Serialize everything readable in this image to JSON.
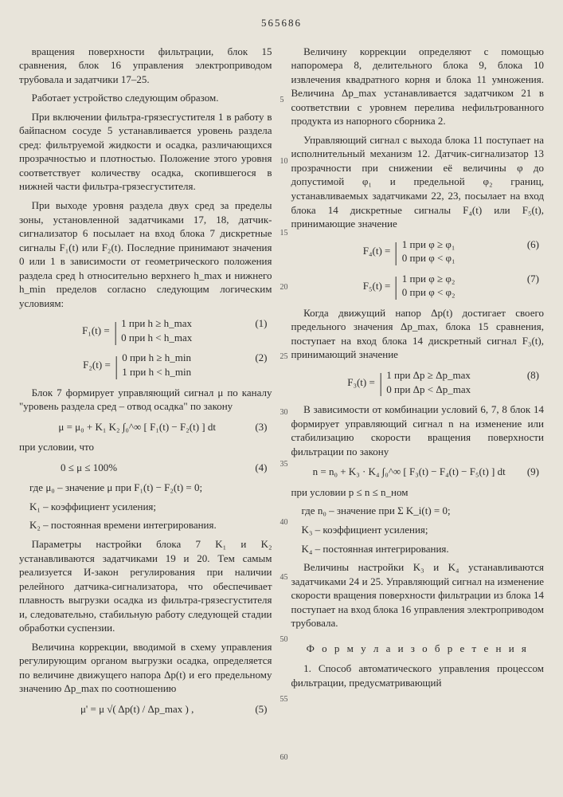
{
  "page_number": "565686",
  "line_numbers": [
    "5",
    "10",
    "15",
    "20",
    "25",
    "30",
    "35",
    "40",
    "45",
    "50",
    "55",
    "60"
  ],
  "left": {
    "p1": "вращения поверхности фильтрации, блок 15 сравнения, блок 16 управления электроприводом трубовала и задатчики 17–25.",
    "p2": "Работает устройство следующим образом.",
    "p3": "При включении фильтра-грязесгустителя 1 в работу в байпасном сосуде 5 устанавливается уровень раздела сред: фильтруемой жидкости и осадка, различающихся прозрачностью и плотностью. Положение этого уровня соответствует количеству осадка, скопившегося в нижней части фильтра-грязесгустителя.",
    "p4": "При выходе уровня раздела двух сред за пределы зоны, установленной задатчиками 17, 18, датчик-сигнализатор 6 посылает на вход блока 7 дискретные сигналы F₁(t) или F₂(t). Последние принимают значения 0 или 1 в зависимости от геометрического положения раздела сред h относительно верхнего h_max и нижнего h_min пределов согласно следующим логическим условиям:",
    "f1_lhs": "F₁(t) =",
    "f1_a": "1 при h ≥ h_max",
    "f1_b": "0 при h < h_max",
    "f1_num": "(1)",
    "f2_lhs": "F₂(t) =",
    "f2_a": "0 при h ≥ h_min",
    "f2_b": "1 при h < h_min",
    "f2_num": "(2)",
    "p5": "Блок 7 формирует управляющий сигнал μ по каналу \"уровень раздела сред – отвод осадка\" по закону",
    "f3": "μ = μ₀ + K₁ K₂ ∫₀^∞ [ F₁(t) − F₂(t) ] dt",
    "f3_num": "(3)",
    "p6": "при условии, что",
    "f4": "0 ≤ μ ≤ 100%",
    "f4_num": "(4)",
    "where1": "где μ₀ – значение μ при F₁(t) − F₂(t) = 0;",
    "where2": "K₁ – коэффициент усиления;",
    "where3": "K₂ – постоянная времени интегрирования.",
    "p7": "Параметры настройки блока 7 K₁ и K₂ устанавливаются задатчиками 19 и 20. Тем самым реализуется И-закон регулирования при наличии релейного датчика-сигнализатора, что обеспечивает плавность выгрузки осадка из фильтра-грязесгустителя и, следовательно, стабильную работу следующей стадии обработки суспензии.",
    "p8": "Величина коррекции, вводимой в схему управления регулирующим органом выгрузки осадка, определяется по величине движущего напора Δp(t) и его предельному значению Δp_max по соотношению",
    "f5": "μ' = μ √( Δp(t) / Δp_max ) ,",
    "f5_num": "(5)"
  },
  "right": {
    "p1": "Величину коррекции определяют с помощью напоромера 8, делительного блока 9, блока 10 извлечения квадратного корня и блока 11 умножения. Величина Δp_max устанавливается задатчиком 21 в соответствии с уровнем перелива нефильтрованного продукта из напорного сборника 2.",
    "p2": "Управляющий сигнал с выхода блока 11 поступает на исполнительный механизм 12. Датчик-сигнализатор 13 прозрачности при снижении её величины φ до допустимой φ₁ и предельной φ₂ границ, устанавливаемых задатчиками 22, 23, посылает на вход блока 14 дискретные сигналы F₄(t) или F₅(t), принимающие значение",
    "f6_lhs": "F₄(t) =",
    "f6_a": "1 при φ ≥ φ₁",
    "f6_b": "0 при φ < φ₁",
    "f6_num": "(6)",
    "f7_lhs": "F₅(t) =",
    "f7_a": "1 при φ ≥ φ₂",
    "f7_b": "0 при φ < φ₂",
    "f7_num": "(7)",
    "p3": "Когда движущий напор Δp(t) достигает своего предельного значения Δp_max, блока 15 сравнения, поступает на вход блока 14 дискретный сигнал F₃(t), принимающий значение",
    "f8_lhs": "F₃(t) =",
    "f8_a": "1 при Δp ≥ Δp_max",
    "f8_b": "0 при Δp < Δp_max",
    "f8_num": "(8)",
    "p4": "В зависимости от комбинации условий 6, 7, 8 блок 14 формирует управляющий сигнал n на изменение или стабилизацию скорости вращения поверхности фильтрации по закону",
    "f9": "n = n₀ + K₃ · K₄ ∫₀^∞ [ F₃(t) − F₄(t) − F₅(t) ] dt",
    "f9_num": "(9)",
    "p5": "при условии p ≤ n ≤ n_ном",
    "where1": "где n₀ – значение при Σ K_i(t) = 0;",
    "where2": "K₃ – коэффициент усиления;",
    "where3": "K₄ – постоянная интегрирования.",
    "p6": "Величины настройки K₃ и K₄ устанавливаются задатчиками 24 и 25. Управляющий сигнал на изменение скорости вращения поверхности фильтрации из блока 14 поступает на вход блока 16 управления электроприводом трубовала.",
    "formula_title": "Ф о р м у л а   и з о б р е т е н и я",
    "p7": "1. Способ автоматического управления процессом фильтрации, предусматривающий"
  }
}
